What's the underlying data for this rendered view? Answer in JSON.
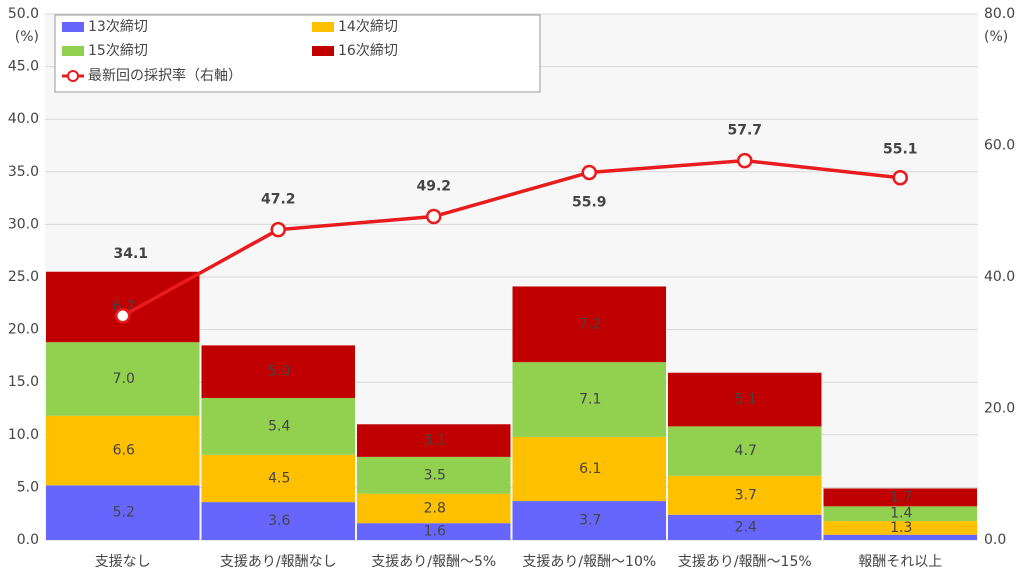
{
  "chart_data": {
    "type": "bar",
    "stacked": true,
    "categories": [
      "支援なし",
      "支援あり/報酬なし",
      "支援あり/報酬～5%",
      "支援あり/報酬～10%",
      "支援あり/報酬～15%",
      "報酬それ以上"
    ],
    "series": [
      {
        "name": "13次締切",
        "color": "#6666ff",
        "values": [
          5.2,
          3.6,
          1.6,
          3.7,
          2.4,
          0.5
        ],
        "value_labels": [
          "5.2",
          "3.6",
          "1.6",
          "3.7",
          "2.4",
          null
        ]
      },
      {
        "name": "14次締切",
        "color": "#ffc000",
        "values": [
          6.6,
          4.5,
          2.8,
          6.1,
          3.7,
          1.3
        ],
        "value_labels": [
          "6.6",
          "4.5",
          "2.8",
          "6.1",
          "3.7",
          "1.3"
        ]
      },
      {
        "name": "15次締切",
        "color": "#92d050",
        "values": [
          7.0,
          5.4,
          3.5,
          7.1,
          4.7,
          1.4
        ],
        "value_labels": [
          "7.0",
          "5.4",
          "3.5",
          "7.1",
          "4.7",
          "1.4"
        ]
      },
      {
        "name": "16次締切",
        "color": "#c00000",
        "values": [
          6.7,
          5.0,
          3.1,
          7.2,
          5.1,
          1.7
        ],
        "value_labels": [
          "6.7",
          "5.0",
          "3.1",
          "7.2",
          "5.1",
          "1.7"
        ]
      },
      {
        "name": "最新回の採択率（右軸）",
        "type": "line",
        "axis": "y2",
        "color": "#e81c1c",
        "values": [
          34.1,
          47.2,
          49.2,
          55.9,
          57.7,
          55.1
        ]
      }
    ],
    "ylim": [
      0,
      50
    ],
    "yticks": [
      {
        "value": 0,
        "label": "0.0"
      },
      {
        "value": 5,
        "label": "5.0"
      },
      {
        "value": 10,
        "label": "10.0"
      },
      {
        "value": 15,
        "label": "15.0"
      },
      {
        "value": 20,
        "label": "20.0"
      },
      {
        "value": 25,
        "label": "25.0"
      },
      {
        "value": 30,
        "label": "30.0"
      },
      {
        "value": 35,
        "label": "35.0"
      },
      {
        "value": 40,
        "label": "40.0"
      },
      {
        "value": 45,
        "label": "45.0"
      },
      {
        "value": 50,
        "label": "50.0"
      }
    ],
    "y_unit": "(%)",
    "y2lim": [
      0,
      80
    ],
    "y2ticks": [
      {
        "value": 0,
        "label": "0.0"
      },
      {
        "value": 20,
        "label": "20.0"
      },
      {
        "value": 40,
        "label": "40.0"
      },
      {
        "value": 60,
        "label": "60.0"
      },
      {
        "value": 80,
        "label": "80.0"
      }
    ],
    "y2_unit": "(%)",
    "grid": true,
    "legend": "top-left"
  }
}
